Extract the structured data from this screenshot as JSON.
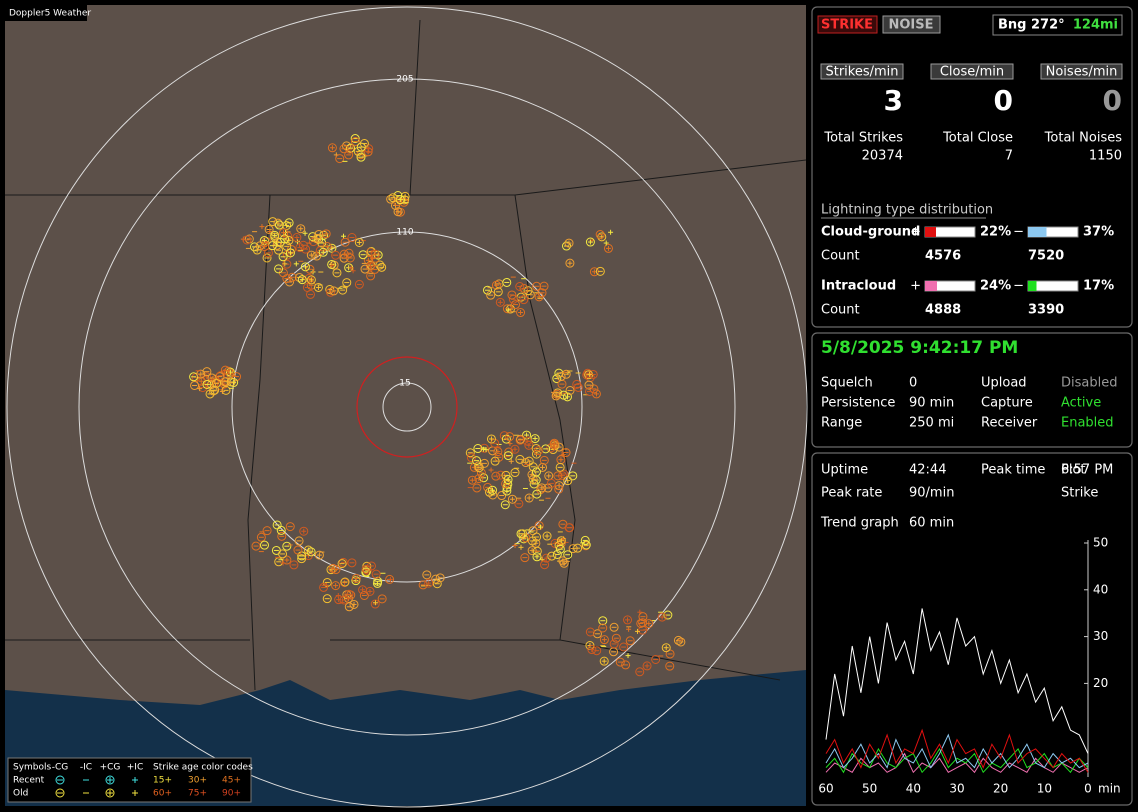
{
  "map": {
    "title": "Doppler5 Weather",
    "ring_labels": [
      "205",
      "110",
      "15"
    ],
    "legend": {
      "symbols_label": "Symbols",
      "headers": [
        "-CG",
        "-IC",
        "+CG",
        "+IC"
      ],
      "rows": [
        "Recent",
        "Old"
      ],
      "age_title": "Strike age color codes",
      "recent_ages": [
        "15+",
        "30+",
        "45+"
      ],
      "old_ages": [
        "60+",
        "75+",
        "90+"
      ]
    }
  },
  "status": {
    "buttons": [
      "STRIKE",
      "NOISE"
    ],
    "bearing": "Bng 272°",
    "distance": "124mi",
    "rates": [
      {
        "label": "Strikes/min",
        "value": 3
      },
      {
        "label": "Close/min",
        "value": 0
      },
      {
        "label": "Noises/min",
        "value": 0
      }
    ],
    "totals": [
      {
        "label": "Total Strikes",
        "value": 20374
      },
      {
        "label": "Total Close",
        "value": 7
      },
      {
        "label": "Total Noises",
        "value": 1150
      }
    ],
    "distribution": {
      "title": "Lightning type distribution",
      "count_label": "Count",
      "types": [
        {
          "name": "Cloud-ground",
          "bars": [
            {
              "sign": "+",
              "value": 22,
              "label": "22%",
              "color": "#e01010",
              "count": 4576
            },
            {
              "sign": "−",
              "value": 37,
              "label": "37%",
              "color": "#8cc8f0",
              "count": 7520
            }
          ]
        },
        {
          "name": "Intracloud",
          "bars": [
            {
              "sign": "+",
              "value": 24,
              "label": "24%",
              "color": "#f070b0",
              "count": 4888
            },
            {
              "sign": "−",
              "value": 17,
              "label": "17%",
              "color": "#20e020",
              "count": 3390
            }
          ]
        }
      ]
    }
  },
  "settings": {
    "datetime": "5/8/2025 9:42:17 PM",
    "rows": [
      [
        "Squelch",
        "0",
        "Upload",
        "Disabled"
      ],
      [
        "Persistence",
        "90 min",
        "Capture",
        "Active"
      ],
      [
        "Range",
        "250 mi",
        "Receiver",
        "Enabled"
      ]
    ]
  },
  "stats": {
    "rows": [
      [
        "Uptime",
        "42:44",
        "Peak time",
        "6:57 PM",
        "Plot"
      ],
      [
        "Peak rate",
        "90/min",
        "",
        "",
        "Strike"
      ]
    ],
    "trend_label": "Trend graph",
    "trend_value": "60 min"
  },
  "chart_data": {
    "type": "line",
    "x_unit": "min",
    "x": [
      60,
      58,
      56,
      54,
      52,
      50,
      48,
      46,
      44,
      42,
      40,
      38,
      36,
      34,
      32,
      30,
      28,
      26,
      24,
      22,
      20,
      18,
      16,
      14,
      12,
      10,
      8,
      6,
      4,
      2,
      0
    ],
    "xlim": [
      60,
      0
    ],
    "xticks": [
      60,
      50,
      40,
      30,
      20,
      10,
      0
    ],
    "ylim": [
      0,
      50
    ],
    "yticks": [
      20,
      30,
      40,
      50
    ],
    "series": [
      {
        "color": "#ffffff",
        "values": [
          8,
          22,
          13,
          28,
          18,
          30,
          20,
          33,
          25,
          29,
          22,
          36,
          27,
          31,
          24,
          34,
          28,
          30,
          22,
          27,
          20,
          25,
          18,
          22,
          16,
          19,
          12,
          15,
          10,
          9,
          5
        ]
      },
      {
        "color": "#e01010",
        "values": [
          5,
          8,
          3,
          6,
          2,
          7,
          4,
          9,
          3,
          6,
          5,
          10,
          4,
          7,
          3,
          8,
          5,
          6,
          2,
          7,
          4,
          9,
          3,
          5,
          6,
          4,
          2,
          5,
          3,
          4,
          1
        ]
      },
      {
        "color": "#8cc8f0",
        "values": [
          3,
          6,
          2,
          4,
          7,
          3,
          5,
          2,
          8,
          4,
          3,
          6,
          2,
          5,
          9,
          3,
          4,
          2,
          6,
          3,
          5,
          2,
          4,
          7,
          3,
          2,
          5,
          3,
          4,
          2,
          3
        ]
      },
      {
        "color": "#20e020",
        "values": [
          2,
          4,
          1,
          5,
          3,
          2,
          6,
          3,
          2,
          4,
          5,
          1,
          3,
          6,
          2,
          4,
          3,
          5,
          1,
          3,
          2,
          4,
          6,
          2,
          3,
          5,
          2,
          3,
          1,
          4,
          2
        ]
      },
      {
        "color": "#f070b0",
        "values": [
          1,
          3,
          2,
          1,
          4,
          2,
          3,
          1,
          2,
          5,
          1,
          3,
          2,
          4,
          1,
          2,
          3,
          1,
          4,
          2,
          1,
          3,
          2,
          1,
          4,
          2,
          1,
          3,
          2,
          1,
          2
        ]
      }
    ]
  }
}
